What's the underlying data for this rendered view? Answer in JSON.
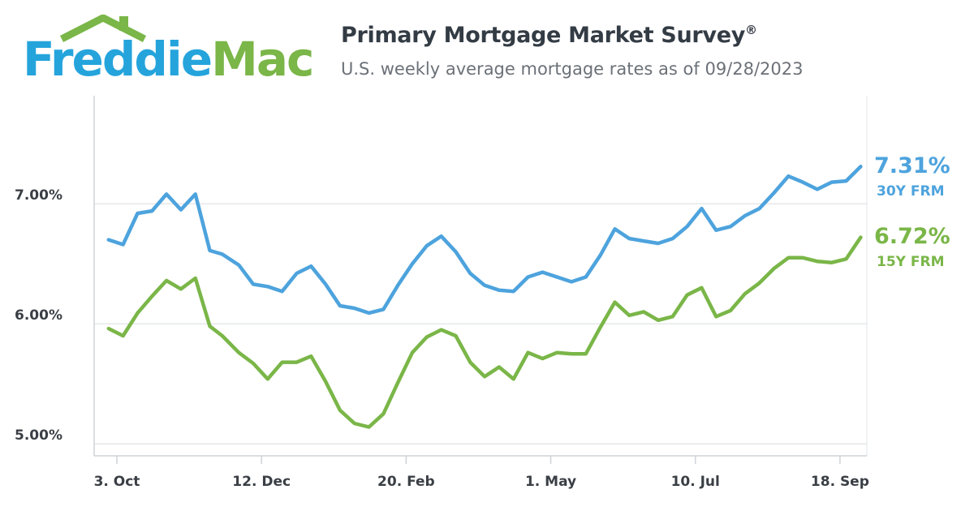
{
  "brand": {
    "name_part1": "Freddie",
    "name_part2": "Mac",
    "blue": "#25a4dc",
    "green": "#7ab648"
  },
  "header": {
    "title": "Primary Mortgage Market Survey",
    "title_mark": "®",
    "subtitle": "U.S. weekly average mortgage rates as of 09/28/2023"
  },
  "chart_data": {
    "type": "line",
    "title": "Primary Mortgage Market Survey®",
    "subtitle": "U.S. weekly average mortgage rates as of 09/28/2023",
    "x": [
      "2022-09-29",
      "2022-10-06",
      "2022-10-13",
      "2022-10-20",
      "2022-10-27",
      "2022-11-03",
      "2022-11-10",
      "2022-11-17",
      "2022-11-23",
      "2022-12-01",
      "2022-12-08",
      "2022-12-15",
      "2022-12-22",
      "2022-12-29",
      "2023-01-05",
      "2023-01-12",
      "2023-01-19",
      "2023-01-26",
      "2023-02-02",
      "2023-02-09",
      "2023-02-16",
      "2023-02-23",
      "2023-03-02",
      "2023-03-09",
      "2023-03-16",
      "2023-03-23",
      "2023-03-30",
      "2023-04-06",
      "2023-04-13",
      "2023-04-20",
      "2023-04-27",
      "2023-05-04",
      "2023-05-11",
      "2023-05-18",
      "2023-05-25",
      "2023-06-01",
      "2023-06-08",
      "2023-06-15",
      "2023-06-22",
      "2023-06-29",
      "2023-07-06",
      "2023-07-13",
      "2023-07-20",
      "2023-07-27",
      "2023-08-03",
      "2023-08-10",
      "2023-08-17",
      "2023-08-24",
      "2023-08-31",
      "2023-09-07",
      "2023-09-14",
      "2023-09-21",
      "2023-09-28"
    ],
    "x_ticks": [
      "3. Oct",
      "12. Dec",
      "20. Feb",
      "1. May",
      "10. Jul",
      "18. Sep"
    ],
    "x_tick_dates": [
      "2022-10-03",
      "2022-12-12",
      "2023-02-20",
      "2023-05-01",
      "2023-07-10",
      "2023-09-18"
    ],
    "y_ticks": [
      "5.00%",
      "6.00%",
      "7.00%"
    ],
    "ylim": [
      4.9,
      7.9
    ],
    "grid": true,
    "series": [
      {
        "name": "30Y FRM",
        "color": "#4da3dd",
        "values": [
          6.7,
          6.66,
          6.92,
          6.94,
          7.08,
          6.95,
          7.08,
          6.61,
          6.58,
          6.49,
          6.33,
          6.31,
          6.27,
          6.42,
          6.48,
          6.33,
          6.15,
          6.13,
          6.09,
          6.12,
          6.32,
          6.5,
          6.65,
          6.73,
          6.6,
          6.42,
          6.32,
          6.28,
          6.27,
          6.39,
          6.43,
          6.39,
          6.35,
          6.39,
          6.57,
          6.79,
          6.71,
          6.69,
          6.67,
          6.71,
          6.81,
          6.96,
          6.78,
          6.81,
          6.9,
          6.96,
          7.09,
          7.23,
          7.18,
          7.12,
          7.18,
          7.19,
          7.31
        ]
      },
      {
        "name": "15Y FRM",
        "color": "#7ab648",
        "values": [
          5.96,
          5.9,
          6.09,
          6.23,
          6.36,
          6.29,
          6.38,
          5.98,
          5.9,
          5.76,
          5.67,
          5.54,
          5.68,
          5.68,
          5.73,
          5.52,
          5.28,
          5.17,
          5.14,
          5.25,
          5.51,
          5.76,
          5.89,
          5.95,
          5.9,
          5.68,
          5.56,
          5.64,
          5.54,
          5.76,
          5.71,
          5.76,
          5.75,
          5.75,
          5.97,
          6.18,
          6.07,
          6.1,
          6.03,
          6.06,
          6.24,
          6.3,
          6.06,
          6.11,
          6.25,
          6.34,
          6.46,
          6.55,
          6.55,
          6.52,
          6.51,
          6.54,
          6.72
        ]
      }
    ],
    "end_labels": [
      {
        "value": "7.31%",
        "name": "30Y FRM"
      },
      {
        "value": "6.72%",
        "name": "15Y FRM"
      }
    ]
  }
}
